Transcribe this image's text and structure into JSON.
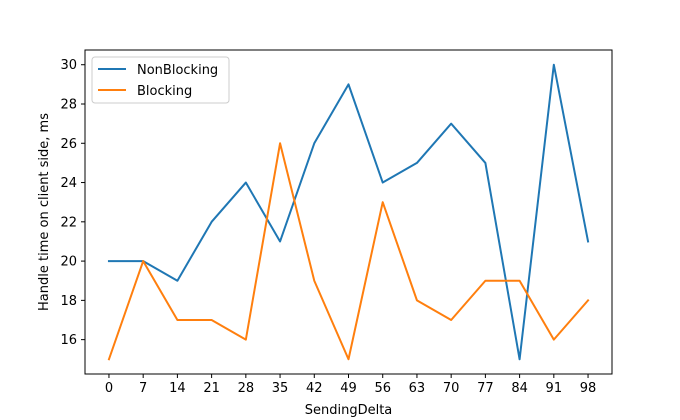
{
  "chart_data": {
    "type": "line",
    "title": "",
    "xlabel": "SendingDelta",
    "ylabel": "Handle time on client side, ms",
    "x": [
      0,
      7,
      14,
      21,
      28,
      35,
      42,
      49,
      56,
      63,
      70,
      77,
      84,
      91,
      98
    ],
    "xlim": [
      -4.9,
      102.9
    ],
    "ylim": [
      14.25,
      30.75
    ],
    "yticks": [
      16,
      18,
      20,
      22,
      24,
      26,
      28,
      30
    ],
    "grid": false,
    "legend_position": "top-left",
    "series": [
      {
        "name": "NonBlocking",
        "color": "#1f77b4",
        "values": [
          20,
          20,
          19,
          22,
          24,
          21,
          26,
          29,
          24,
          25,
          27,
          25,
          15,
          30,
          21
        ]
      },
      {
        "name": "Blocking",
        "color": "#ff7f0e",
        "values": [
          15,
          20,
          17,
          17,
          16,
          26,
          19,
          15,
          23,
          18,
          17,
          19,
          19,
          16,
          18
        ]
      }
    ]
  }
}
